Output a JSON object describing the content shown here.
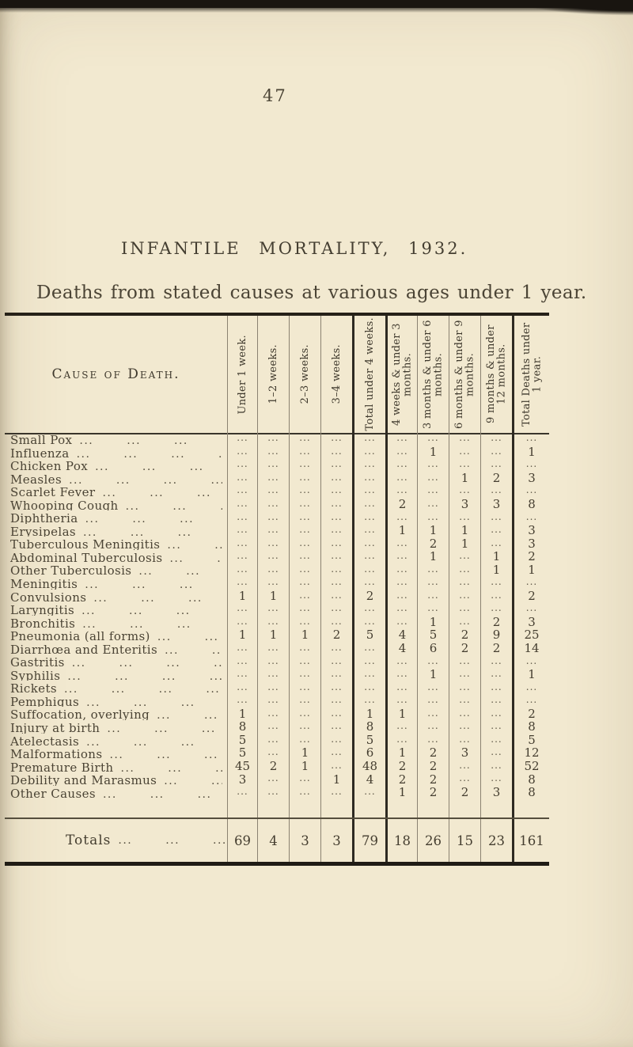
{
  "page": {
    "number": "47"
  },
  "title": "INFANTILE MORTALITY, 1932.",
  "subtitle": "Deaths from stated causes at various ages under 1 year.",
  "table": {
    "cause_header": "Cause of Death.",
    "columns": [
      "Under 1 week.",
      "1–2 weeks.",
      "2–3 weeks.",
      "3–4 weeks.",
      "Total under 4 weeks.",
      "4 weeks & under 3 months.",
      "3 months & under 6 months.",
      "6 months & under 9 months.",
      "9 months & under 12 months.",
      "Total Deaths under 1 year."
    ],
    "empty_marker": "...",
    "leader_fill": "... ... ... ... ... ... ...",
    "rows": [
      {
        "cause": "Small Pox",
        "values": [
          "...",
          "...",
          "...",
          "...",
          "...",
          "...",
          "...",
          "...",
          "...",
          "..."
        ]
      },
      {
        "cause": "Influenza",
        "values": [
          "...",
          "...",
          "...",
          "...",
          "...",
          "...",
          "1",
          "...",
          "...",
          "1"
        ]
      },
      {
        "cause": "Chicken Pox",
        "values": [
          "...",
          "...",
          "...",
          "...",
          "...",
          "...",
          "...",
          "...",
          "...",
          "..."
        ]
      },
      {
        "cause": "Measles",
        "values": [
          "...",
          "...",
          "...",
          "...",
          "...",
          "...",
          "...",
          "1",
          "2",
          "3"
        ]
      },
      {
        "cause": "Scarlet Fever",
        "values": [
          "...",
          "...",
          "...",
          "...",
          "...",
          "...",
          "...",
          "...",
          "...",
          "..."
        ]
      },
      {
        "cause": "Whooping Cough",
        "values": [
          "...",
          "...",
          "...",
          "...",
          "...",
          "2",
          "...",
          "3",
          "3",
          "8"
        ]
      },
      {
        "cause": "Diphtheria",
        "values": [
          "...",
          "...",
          "...",
          "...",
          "...",
          "...",
          "...",
          "...",
          "...",
          "..."
        ]
      },
      {
        "cause": "Erysipelas",
        "values": [
          "...",
          "...",
          "...",
          "...",
          "...",
          "1",
          "1",
          "1",
          "...",
          "3"
        ]
      },
      {
        "cause": "Tuberculous Meningitis",
        "values": [
          "...",
          "...",
          "...",
          "...",
          "...",
          "...",
          "2",
          "1",
          "...",
          "3"
        ]
      },
      {
        "cause": "Abdominal Tuberculosis",
        "values": [
          "...",
          "...",
          "...",
          "...",
          "...",
          "...",
          "1",
          "...",
          "1",
          "2"
        ]
      },
      {
        "cause": "Other Tuberculosis",
        "values": [
          "...",
          "...",
          "...",
          "...",
          "...",
          "...",
          "...",
          "...",
          "1",
          "1"
        ]
      },
      {
        "cause": "Meningitis",
        "values": [
          "...",
          "...",
          "...",
          "...",
          "...",
          "...",
          "...",
          "...",
          "...",
          "..."
        ]
      },
      {
        "cause": "Convulsions",
        "values": [
          "1",
          "1",
          "...",
          "...",
          "2",
          "...",
          "...",
          "...",
          "...",
          "2"
        ]
      },
      {
        "cause": "Laryngitis",
        "values": [
          "...",
          "...",
          "...",
          "...",
          "...",
          "...",
          "...",
          "...",
          "...",
          "..."
        ]
      },
      {
        "cause": "Bronchitis",
        "values": [
          "...",
          "...",
          "...",
          "...",
          "...",
          "...",
          "1",
          "...",
          "2",
          "3"
        ]
      },
      {
        "cause": "Pneumonia (all forms)",
        "values": [
          "1",
          "1",
          "1",
          "2",
          "5",
          "4",
          "5",
          "2",
          "9",
          "25"
        ]
      },
      {
        "cause": "Diarrhœa and Enteritis",
        "values": [
          "...",
          "...",
          "...",
          "...",
          "...",
          "4",
          "6",
          "2",
          "2",
          "14"
        ]
      },
      {
        "cause": "Gastritis",
        "values": [
          "...",
          "...",
          "...",
          "...",
          "...",
          "...",
          "...",
          "...",
          "...",
          "..."
        ]
      },
      {
        "cause": "Syphilis",
        "values": [
          "...",
          "...",
          "...",
          "...",
          "...",
          "...",
          "1",
          "...",
          "...",
          "1"
        ]
      },
      {
        "cause": "Rickets",
        "values": [
          "...",
          "...",
          "...",
          "...",
          "...",
          "...",
          "...",
          "...",
          "...",
          "..."
        ]
      },
      {
        "cause": "Pemphigus",
        "values": [
          "...",
          "...",
          "...",
          "...",
          "...",
          "...",
          "...",
          "...",
          "...",
          "..."
        ]
      },
      {
        "cause": "Suffocation, overlying",
        "values": [
          "1",
          "...",
          "...",
          "...",
          "1",
          "1",
          "...",
          "...",
          "...",
          "2"
        ]
      },
      {
        "cause": "Injury at birth",
        "values": [
          "8",
          "...",
          "...",
          "...",
          "8",
          "...",
          "...",
          "...",
          "...",
          "8"
        ]
      },
      {
        "cause": "Atelectasis",
        "values": [
          "5",
          "...",
          "...",
          "...",
          "5",
          "...",
          "...",
          "...",
          "...",
          "5"
        ]
      },
      {
        "cause": "Malformations",
        "values": [
          "5",
          "...",
          "1",
          "...",
          "6",
          "1",
          "2",
          "3",
          "...",
          "12"
        ]
      },
      {
        "cause": "Premature Birth",
        "values": [
          "45",
          "2",
          "1",
          "...",
          "48",
          "2",
          "2",
          "...",
          "...",
          "52"
        ]
      },
      {
        "cause": "Debility and Marasmus",
        "values": [
          "3",
          "...",
          "...",
          "1",
          "4",
          "2",
          "2",
          "...",
          "...",
          "8"
        ]
      },
      {
        "cause": "Other Causes",
        "values": [
          "...",
          "...",
          "...",
          "...",
          "...",
          "1",
          "2",
          "2",
          "3",
          "8"
        ]
      }
    ],
    "totals": {
      "label": "Totals",
      "values": [
        "69",
        "4",
        "3",
        "3",
        "79",
        "18",
        "26",
        "15",
        "23",
        "161"
      ]
    }
  },
  "colors": {
    "paper": "#f2e9d0",
    "ink": "#4b4435",
    "heavy_rule": "#262118",
    "light_rule": "#8b8271"
  }
}
